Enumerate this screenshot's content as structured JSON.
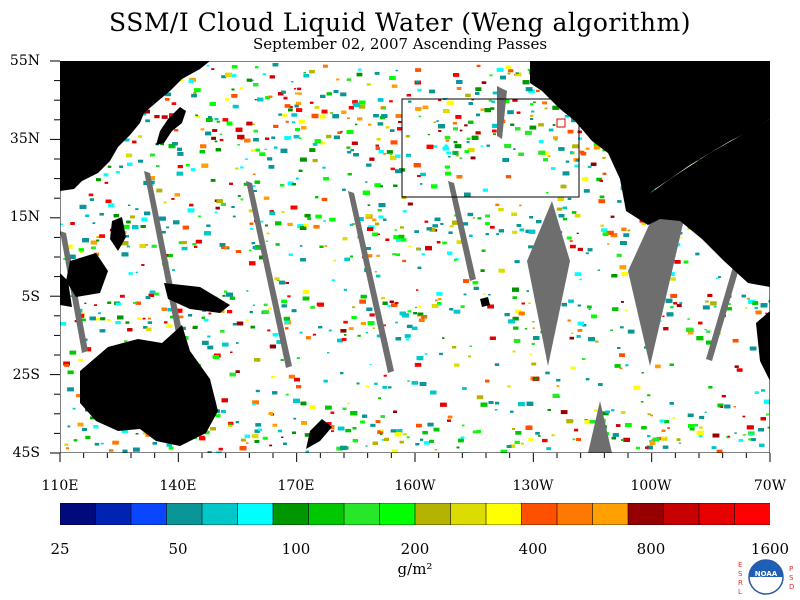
{
  "title": "SSM/I Cloud Liquid Water (Weng algorithm)",
  "subtitle": "September 02, 2007  Ascending Passes",
  "lat_labels": [
    "55N",
    "35N",
    "15N",
    "5S",
    "25S",
    "45S"
  ],
  "lon_labels": [
    "110E",
    "140E",
    "170E",
    "160W",
    "130W",
    "100W",
    "70W"
  ],
  "colorbar": {
    "colors": [
      "#000a7d",
      "#0023b4",
      "#0a46ff",
      "#0a9696",
      "#00c8c8",
      "#00ffff",
      "#009600",
      "#00c800",
      "#28e628",
      "#00ff00",
      "#b4b400",
      "#dcdc00",
      "#ffff00",
      "#ff5000",
      "#ff7800",
      "#ffa000",
      "#960000",
      "#c80000",
      "#e60000",
      "#ff0000"
    ],
    "tick_labels": [
      "25",
      "50",
      "100",
      "200",
      "400",
      "800",
      "1600"
    ],
    "unit": "g/m²"
  },
  "land_color": "#000000",
  "missing_color": "#6e6e6e",
  "logo": {
    "letters_left": "ESRL",
    "letters_right": "PSD",
    "text": "NOAA"
  }
}
